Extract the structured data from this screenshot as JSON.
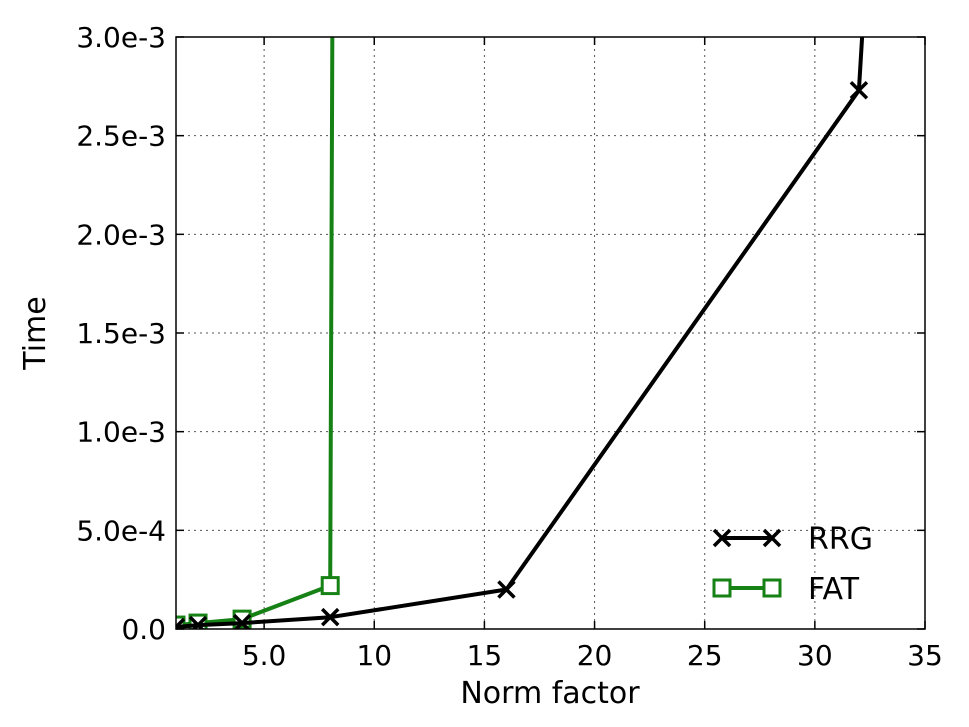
{
  "chart_data": {
    "type": "line",
    "title": "",
    "xlabel": "Norm factor",
    "ylabel": "Time",
    "xlim": [
      1,
      35
    ],
    "ylim": [
      0,
      0.003
    ],
    "x_ticks": [
      {
        "value": 5,
        "label": "5.0"
      },
      {
        "value": 10,
        "label": "10"
      },
      {
        "value": 15,
        "label": "15"
      },
      {
        "value": 20,
        "label": "20"
      },
      {
        "value": 25,
        "label": "25"
      },
      {
        "value": 30,
        "label": "30"
      },
      {
        "value": 35,
        "label": "35"
      }
    ],
    "y_ticks": [
      {
        "value": 0.0,
        "label": "0.0"
      },
      {
        "value": 0.0005,
        "label": "5.0e-4"
      },
      {
        "value": 0.001,
        "label": "1.0e-3"
      },
      {
        "value": 0.0015,
        "label": "1.5e-3"
      },
      {
        "value": 0.002,
        "label": "2.0e-3"
      },
      {
        "value": 0.0025,
        "label": "2.5e-3"
      },
      {
        "value": 0.003,
        "label": "3.0e-3"
      }
    ],
    "grid": true,
    "legend_position": "bottom-right",
    "series": [
      {
        "name": "RRG",
        "color": "#000000",
        "marker": "x",
        "points": [
          {
            "x": 1,
            "y": 1e-05
          },
          {
            "x": 2,
            "y": 2e-05
          },
          {
            "x": 4,
            "y": 3e-05
          },
          {
            "x": 8,
            "y": 6e-05
          },
          {
            "x": 16,
            "y": 0.0002
          },
          {
            "x": 32,
            "y": 0.00273
          },
          {
            "x": 32.2,
            "y": 0.0031
          }
        ],
        "marker_count": 6
      },
      {
        "name": "FAT",
        "color": "#168216",
        "marker": "square",
        "points": [
          {
            "x": 1,
            "y": 2e-05
          },
          {
            "x": 2,
            "y": 3e-05
          },
          {
            "x": 4,
            "y": 5e-05
          },
          {
            "x": 8,
            "y": 0.00022
          },
          {
            "x": 8.1,
            "y": 0.0031
          }
        ],
        "marker_count": 4
      }
    ]
  }
}
